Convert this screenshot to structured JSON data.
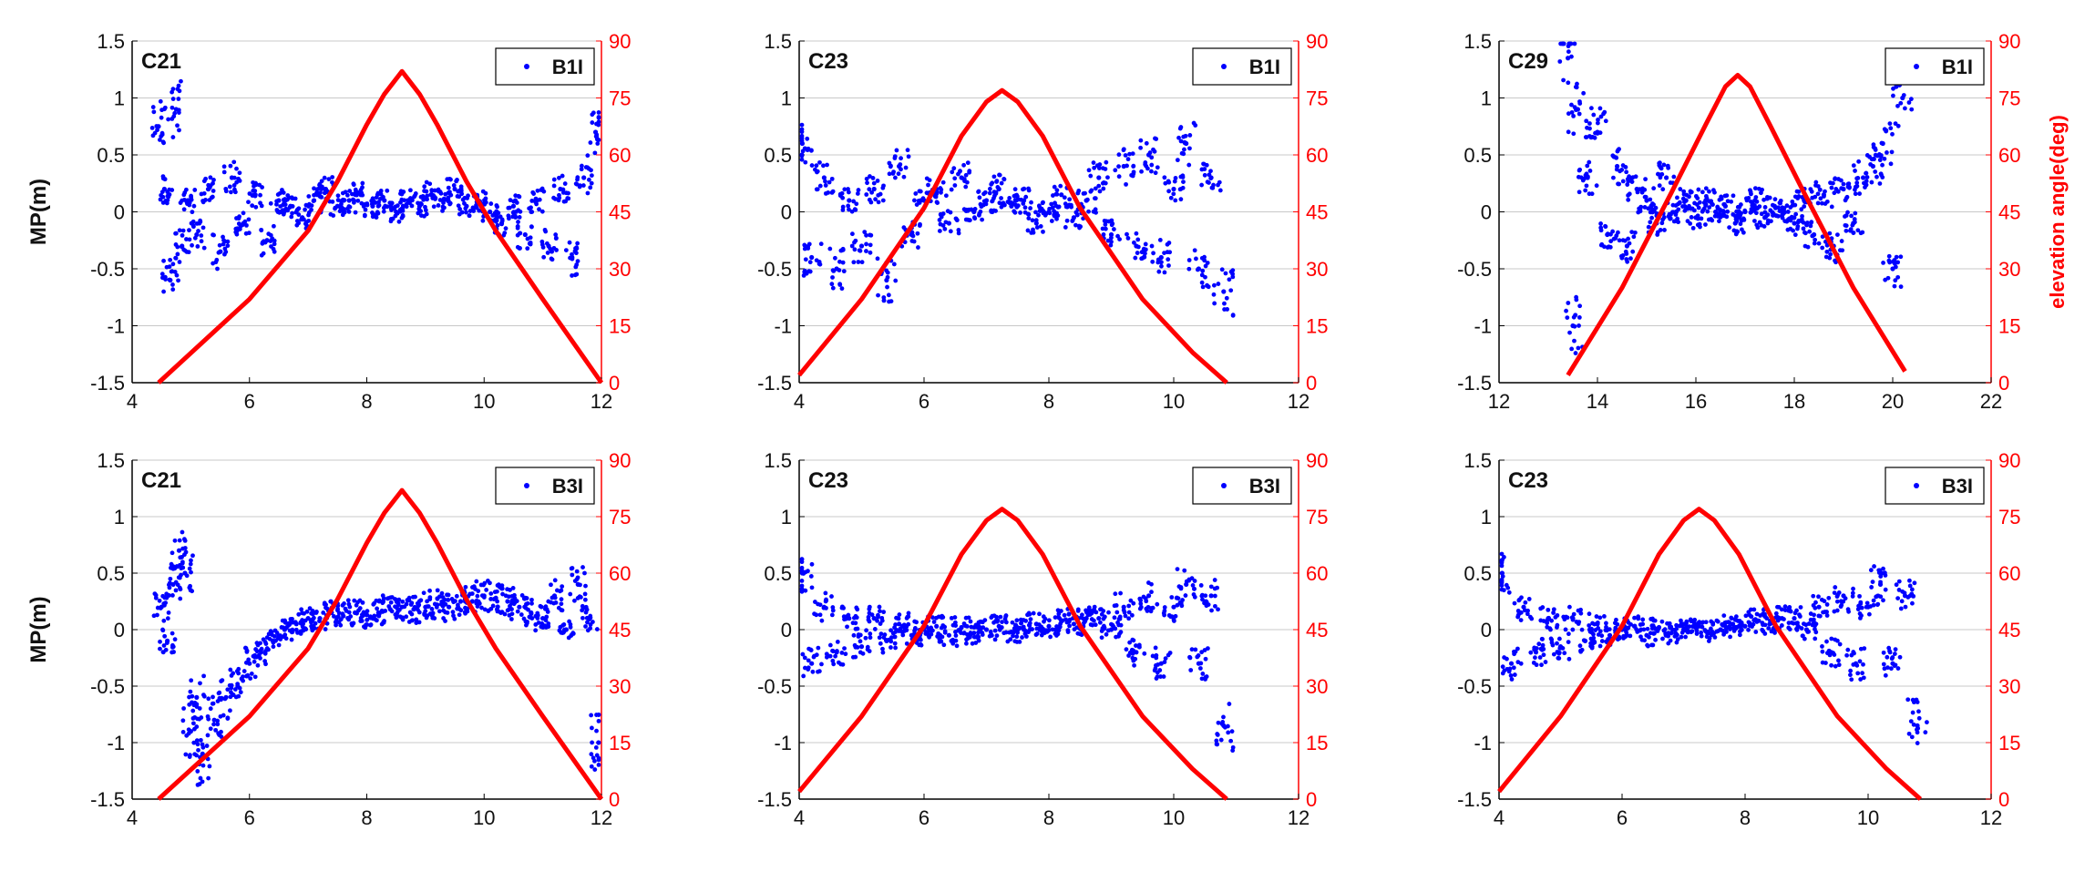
{
  "colors": {
    "scatter": "#0000ff",
    "elevation": "#ff0000",
    "axis": "#000000",
    "grid": "#c8c8c8"
  },
  "chart_data": [
    {
      "type": "scatter",
      "panel_label": "C21",
      "legend": "B1I",
      "ylabel_left": "MP(m)",
      "ylabel_right": "",
      "xlim": [
        4,
        12
      ],
      "xticks": [
        "4",
        "6",
        "8",
        "10",
        "12"
      ],
      "ylim_left": [
        -1.5,
        1.5
      ],
      "yticks_left": [
        "-1.5",
        "-1",
        "-0.5",
        "0",
        "0.5",
        "1",
        "1.5"
      ],
      "ylim_right": [
        0,
        90
      ],
      "yticks_right": [
        "0",
        "15",
        "30",
        "45",
        "60",
        "75",
        "90"
      ],
      "grid": "horizontal",
      "series": [
        {
          "name": "B1I",
          "kind": "scatter",
          "x": [
            4.45,
            4.55,
            4.65,
            4.75,
            4.85,
            4.95,
            5.1,
            5.3,
            5.5,
            5.7,
            5.9,
            6.1,
            6.3,
            6.5,
            6.7,
            6.9,
            7.1,
            7.3,
            7.5,
            7.7,
            7.9,
            8.1,
            8.3,
            8.5,
            8.7,
            8.9,
            9.1,
            9.3,
            9.5,
            9.7,
            9.9,
            10.1,
            10.3,
            10.5,
            10.7,
            10.9,
            11.1,
            11.3,
            11.5,
            11.7,
            11.9
          ],
          "y": [
            0.75,
            0.2,
            -0.6,
            0.9,
            -0.3,
            0.1,
            -0.2,
            0.2,
            -0.35,
            0.3,
            -0.1,
            0.15,
            -0.25,
            0.1,
            0.05,
            -0.05,
            0.1,
            0.2,
            0.05,
            0.1,
            0.15,
            0.05,
            0.1,
            0.0,
            0.1,
            0.05,
            0.15,
            0.1,
            0.2,
            0.05,
            0.1,
            0.0,
            -0.1,
            0.05,
            -0.2,
            0.1,
            -0.3,
            0.2,
            -0.4,
            0.3,
            0.7
          ]
        },
        {
          "name": "",
          "kind": "elevation_line",
          "x": [
            4.45,
            6.0,
            7.0,
            7.5,
            8.0,
            8.3,
            8.6,
            8.9,
            9.2,
            9.7,
            10.2,
            11.0,
            12.0
          ],
          "y": [
            0,
            22,
            40,
            53,
            68,
            76,
            82,
            76,
            68,
            53,
            40,
            22,
            0
          ]
        }
      ]
    },
    {
      "type": "scatter",
      "panel_label": "C23",
      "legend": "B1I",
      "ylabel_left": "",
      "ylabel_right": "",
      "xlim": [
        4,
        12
      ],
      "xticks": [
        "4",
        "6",
        "8",
        "10",
        "12"
      ],
      "ylim_left": [
        -1.5,
        1.5
      ],
      "yticks_left": [
        "-1.5",
        "-1",
        "-0.5",
        "0",
        "0.5",
        "1",
        "1.5"
      ],
      "ylim_right": [
        0,
        90
      ],
      "yticks_right": [
        "0",
        "15",
        "30",
        "45",
        "60",
        "75",
        "90"
      ],
      "grid": "horizontal",
      "series": [
        {
          "name": "B1I",
          "kind": "scatter",
          "x": [
            4.05,
            4.2,
            4.4,
            4.6,
            4.8,
            5.0,
            5.2,
            5.4,
            5.6,
            5.8,
            6.0,
            6.2,
            6.4,
            6.6,
            6.8,
            7.0,
            7.2,
            7.4,
            7.6,
            7.8,
            8.0,
            8.2,
            8.4,
            8.6,
            8.8,
            9.0,
            9.2,
            9.4,
            9.6,
            9.8,
            10.0,
            10.2,
            10.4,
            10.6,
            10.8
          ],
          "y": [
            0.6,
            -0.4,
            0.3,
            -0.5,
            0.1,
            -0.3,
            0.2,
            -0.6,
            0.4,
            -0.2,
            0.1,
            0.2,
            -0.1,
            0.3,
            0.0,
            0.1,
            0.2,
            0.05,
            0.1,
            -0.1,
            0.0,
            0.15,
            -0.05,
            0.1,
            0.3,
            -0.2,
            0.4,
            -0.3,
            0.5,
            -0.4,
            0.2,
            0.6,
            -0.5,
            0.3,
            -0.7
          ]
        },
        {
          "name": "",
          "kind": "elevation_line",
          "x": [
            4.0,
            5.0,
            6.0,
            6.6,
            7.0,
            7.25,
            7.5,
            7.9,
            8.5,
            9.5,
            10.3,
            10.85
          ],
          "y": [
            2,
            22,
            46,
            65,
            74,
            77,
            74,
            65,
            46,
            22,
            8,
            0
          ]
        }
      ]
    },
    {
      "type": "scatter",
      "panel_label": "C29",
      "legend": "B1I",
      "ylabel_left": "",
      "ylabel_right": "elevation angle(deg)",
      "xlim": [
        12,
        22
      ],
      "xticks": [
        "12",
        "14",
        "16",
        "18",
        "20",
        "22"
      ],
      "ylim_left": [
        -1.5,
        1.5
      ],
      "yticks_left": [
        "-1.5",
        "-1",
        "-0.5",
        "0",
        "0.5",
        "1",
        "1.5"
      ],
      "ylim_right": [
        0,
        90
      ],
      "yticks_right": [
        "0",
        "15",
        "30",
        "45",
        "60",
        "75",
        "90"
      ],
      "grid": "horizontal",
      "series": [
        {
          "name": "B1I",
          "kind": "scatter",
          "x": [
            13.4,
            13.5,
            13.6,
            13.8,
            14.0,
            14.2,
            14.4,
            14.6,
            14.8,
            15.0,
            15.2,
            15.4,
            15.6,
            15.8,
            16.0,
            16.2,
            16.4,
            16.6,
            16.8,
            17.0,
            17.2,
            17.4,
            17.6,
            17.8,
            18.0,
            18.2,
            18.4,
            18.6,
            18.8,
            19.0,
            19.2,
            19.4,
            19.6,
            19.8,
            20.0,
            20.2
          ],
          "y": [
            1.35,
            -1.0,
            0.9,
            0.3,
            0.7,
            -0.2,
            0.4,
            -0.3,
            0.2,
            0.1,
            -0.1,
            0.3,
            0.0,
            0.1,
            -0.05,
            0.1,
            0.0,
            0.05,
            -0.1,
            0.0,
            0.1,
            -0.05,
            0.05,
            0.0,
            -0.1,
            0.1,
            -0.2,
            0.15,
            -0.3,
            0.2,
            -0.1,
            0.3,
            0.4,
            0.6,
            -0.5,
            1.0
          ]
        },
        {
          "name": "",
          "kind": "elevation_line",
          "x": [
            13.4,
            14.5,
            15.5,
            16.2,
            16.6,
            16.85,
            17.1,
            17.5,
            18.2,
            19.2,
            20.25
          ],
          "y": [
            2,
            25,
            50,
            68,
            78,
            81,
            78,
            68,
            50,
            25,
            3
          ]
        }
      ]
    },
    {
      "type": "scatter",
      "panel_label": "C21",
      "legend": "B3I",
      "ylabel_left": "MP(m)",
      "ylabel_right": "",
      "xlim": [
        4,
        12
      ],
      "xticks": [
        "4",
        "6",
        "8",
        "10",
        "12"
      ],
      "ylim_left": [
        -1.5,
        1.5
      ],
      "yticks_left": [
        "-1.5",
        "-1",
        "-0.5",
        "0",
        "0.5",
        "1",
        "1.5"
      ],
      "ylim_right": [
        0,
        90
      ],
      "yticks_right": [
        "0",
        "15",
        "30",
        "45",
        "60",
        "75",
        "90"
      ],
      "grid": "horizontal",
      "series": [
        {
          "name": "B3I",
          "kind": "scatter",
          "x": [
            4.5,
            4.6,
            4.7,
            4.8,
            4.9,
            5.0,
            5.1,
            5.2,
            5.4,
            5.6,
            5.8,
            6.0,
            6.2,
            6.4,
            6.6,
            6.8,
            7.0,
            7.2,
            7.4,
            7.6,
            7.8,
            8.0,
            8.2,
            8.4,
            8.6,
            8.8,
            9.0,
            9.2,
            9.4,
            9.6,
            9.8,
            10.0,
            10.2,
            10.4,
            10.6,
            10.8,
            11.0,
            11.2,
            11.4,
            11.6,
            11.8,
            11.95
          ],
          "y": [
            0.2,
            -0.1,
            0.4,
            0.7,
            0.5,
            -0.9,
            -0.6,
            -1.1,
            -0.8,
            -0.6,
            -0.5,
            -0.3,
            -0.2,
            -0.1,
            0.0,
            0.05,
            0.1,
            0.1,
            0.15,
            0.12,
            0.15,
            0.13,
            0.15,
            0.18,
            0.2,
            0.18,
            0.2,
            0.22,
            0.2,
            0.25,
            0.25,
            0.3,
            0.28,
            0.25,
            0.2,
            0.15,
            0.1,
            0.3,
            0.0,
            0.4,
            0.1,
            -1.0
          ]
        },
        {
          "name": "",
          "kind": "elevation_line",
          "x": [
            4.45,
            6.0,
            7.0,
            7.5,
            8.0,
            8.3,
            8.6,
            8.9,
            9.2,
            9.7,
            10.2,
            11.0,
            12.0
          ],
          "y": [
            0,
            22,
            40,
            53,
            68,
            76,
            82,
            76,
            68,
            53,
            40,
            22,
            0
          ]
        }
      ]
    },
    {
      "type": "scatter",
      "panel_label": "C23",
      "legend": "B3I",
      "ylabel_left": "",
      "ylabel_right": "",
      "xlim": [
        4,
        12
      ],
      "xticks": [
        "4",
        "6",
        "8",
        "10",
        "12"
      ],
      "ylim_left": [
        -1.5,
        1.5
      ],
      "yticks_left": [
        "-1.5",
        "-1",
        "-0.5",
        "0",
        "0.5",
        "1",
        "1.5"
      ],
      "ylim_right": [
        0,
        90
      ],
      "yticks_right": [
        "0",
        "15",
        "30",
        "45",
        "60",
        "75",
        "90"
      ],
      "grid": "horizontal",
      "series": [
        {
          "name": "B3I",
          "kind": "scatter",
          "x": [
            4.05,
            4.2,
            4.4,
            4.6,
            4.8,
            5.0,
            5.2,
            5.4,
            5.6,
            5.8,
            6.0,
            6.2,
            6.4,
            6.6,
            6.8,
            7.0,
            7.2,
            7.4,
            7.6,
            7.8,
            8.0,
            8.2,
            8.4,
            8.6,
            8.8,
            9.0,
            9.2,
            9.4,
            9.6,
            9.8,
            10.0,
            10.2,
            10.4,
            10.6,
            10.8
          ],
          "y": [
            0.5,
            -0.3,
            0.2,
            -0.2,
            0.1,
            -0.15,
            0.1,
            -0.1,
            0.05,
            -0.05,
            0.0,
            0.03,
            -0.05,
            0.02,
            -0.03,
            0.0,
            0.03,
            -0.02,
            0.0,
            0.05,
            0.03,
            0.08,
            0.05,
            0.1,
            0.1,
            0.0,
            0.2,
            -0.2,
            0.3,
            -0.3,
            0.2,
            0.4,
            -0.3,
            0.3,
            -0.85
          ]
        },
        {
          "name": "",
          "kind": "elevation_line",
          "x": [
            4.0,
            5.0,
            6.0,
            6.6,
            7.0,
            7.25,
            7.5,
            7.9,
            8.5,
            9.5,
            10.3,
            10.85
          ],
          "y": [
            2,
            22,
            46,
            65,
            74,
            77,
            74,
            65,
            46,
            22,
            8,
            0
          ]
        }
      ]
    },
    {
      "type": "scatter",
      "panel_label": "C23",
      "legend": "B3I",
      "ylabel_left": "",
      "ylabel_right": "",
      "xlim": [
        4,
        12
      ],
      "xticks": [
        "4",
        "6",
        "8",
        "10",
        "12"
      ],
      "ylim_left": [
        -1.5,
        1.5
      ],
      "yticks_left": [
        "-1.5",
        "-1",
        "-0.5",
        "0",
        "0.5",
        "1",
        "1.5"
      ],
      "ylim_right": [
        0,
        90
      ],
      "yticks_right": [
        "0",
        "15",
        "30",
        "45",
        "60",
        "75",
        "90"
      ],
      "grid": "horizontal",
      "series": [
        {
          "name": "B3I",
          "kind": "scatter",
          "x": [
            4.05,
            4.2,
            4.4,
            4.6,
            4.8,
            5.0,
            5.2,
            5.4,
            5.6,
            5.8,
            6.0,
            6.2,
            6.4,
            6.6,
            6.8,
            7.0,
            7.2,
            7.4,
            7.6,
            7.8,
            8.0,
            8.2,
            8.4,
            8.6,
            8.8,
            9.0,
            9.2,
            9.4,
            9.6,
            9.8,
            10.0,
            10.2,
            10.4,
            10.6,
            10.8
          ],
          "y": [
            0.5,
            -0.3,
            0.2,
            -0.2,
            0.1,
            -0.15,
            0.1,
            -0.1,
            0.05,
            -0.05,
            0.0,
            0.03,
            -0.05,
            0.02,
            -0.03,
            0.0,
            0.03,
            -0.02,
            0.0,
            0.05,
            0.03,
            0.08,
            0.05,
            0.1,
            0.1,
            0.0,
            0.2,
            -0.2,
            0.3,
            -0.3,
            0.2,
            0.4,
            -0.3,
            0.3,
            -0.85
          ]
        },
        {
          "name": "",
          "kind": "elevation_line",
          "x": [
            4.0,
            5.0,
            6.0,
            6.6,
            7.0,
            7.25,
            7.5,
            7.9,
            8.5,
            9.5,
            10.3,
            10.85
          ],
          "y": [
            2,
            22,
            46,
            65,
            74,
            77,
            74,
            65,
            46,
            22,
            8,
            0
          ]
        }
      ]
    }
  ]
}
